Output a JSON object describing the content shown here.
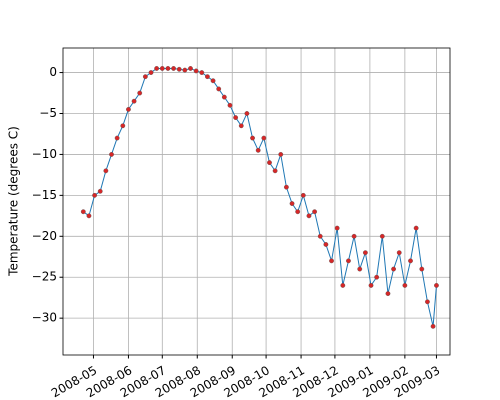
{
  "chart_data": {
    "type": "line",
    "ylabel": "Temperature (degrees C)",
    "x": [
      "2008-04-22",
      "2008-04-27",
      "2008-05-02",
      "2008-05-07",
      "2008-05-12",
      "2008-05-17",
      "2008-05-22",
      "2008-05-27",
      "2008-06-01",
      "2008-06-06",
      "2008-06-11",
      "2008-06-16",
      "2008-06-21",
      "2008-06-26",
      "2008-07-01",
      "2008-07-06",
      "2008-07-11",
      "2008-07-16",
      "2008-07-21",
      "2008-07-26",
      "2008-07-31",
      "2008-08-05",
      "2008-08-10",
      "2008-08-15",
      "2008-08-20",
      "2008-08-25",
      "2008-08-30",
      "2008-09-04",
      "2008-09-09",
      "2008-09-14",
      "2008-09-19",
      "2008-09-24",
      "2008-09-29",
      "2008-10-04",
      "2008-10-09",
      "2008-10-14",
      "2008-10-19",
      "2008-10-24",
      "2008-10-29",
      "2008-11-03",
      "2008-11-08",
      "2008-11-13",
      "2008-11-18",
      "2008-11-23",
      "2008-11-28",
      "2008-12-03",
      "2008-12-08",
      "2008-12-13",
      "2008-12-18",
      "2008-12-23",
      "2008-12-28",
      "2009-01-02",
      "2009-01-07",
      "2009-01-12",
      "2009-01-17",
      "2009-01-22",
      "2009-01-27",
      "2009-02-01",
      "2009-02-06",
      "2009-02-11",
      "2009-02-16",
      "2009-02-21",
      "2009-02-26",
      "2009-03-01"
    ],
    "series": [
      {
        "color": "#1f77b4",
        "marker_color": "#d62728",
        "values": [
          -17,
          -17.5,
          -15,
          -14.5,
          -12,
          -10,
          -8,
          -6.5,
          -4.5,
          -3.5,
          -2.5,
          -0.5,
          0,
          0.5,
          0.5,
          0.5,
          0.5,
          0.4,
          0.3,
          0.5,
          0.2,
          0,
          -0.5,
          -1,
          -2,
          -3,
          -4,
          -5.5,
          -6.5,
          -5,
          -8,
          -9.5,
          -8,
          -11,
          -12,
          -10,
          -14,
          -16,
          -17,
          -15,
          -17.5,
          -17,
          -20,
          -21,
          -23,
          -19,
          -26,
          -23,
          -20,
          -24,
          -22,
          -26,
          -25,
          -20,
          -27,
          -24,
          -22,
          -26,
          -23,
          -19,
          -24,
          -28,
          -31,
          -26
        ]
      }
    ],
    "xlim": [
      "2008-04-04",
      "2009-03-13"
    ],
    "xticks": [
      {
        "value": "2008-05-01",
        "label": "2008-05"
      },
      {
        "value": "2008-06-01",
        "label": "2008-06"
      },
      {
        "value": "2008-07-01",
        "label": "2008-07"
      },
      {
        "value": "2008-08-01",
        "label": "2008-08"
      },
      {
        "value": "2008-09-01",
        "label": "2008-09"
      },
      {
        "value": "2008-10-01",
        "label": "2008-10"
      },
      {
        "value": "2008-11-01",
        "label": "2008-11"
      },
      {
        "value": "2008-12-01",
        "label": "2008-12"
      },
      {
        "value": "2009-01-01",
        "label": "2009-01"
      },
      {
        "value": "2009-02-01",
        "label": "2009-02"
      },
      {
        "value": "2009-03-01",
        "label": "2009-03"
      }
    ],
    "ylim": [
      -34.5,
      3
    ],
    "yticks": [
      {
        "value": 0,
        "label": "0"
      },
      {
        "value": -5,
        "label": "−5"
      },
      {
        "value": -10,
        "label": "−10"
      },
      {
        "value": -15,
        "label": "−15"
      },
      {
        "value": -20,
        "label": "−20"
      },
      {
        "value": -25,
        "label": "−25"
      },
      {
        "value": -30,
        "label": "−30"
      }
    ],
    "grid": true
  }
}
